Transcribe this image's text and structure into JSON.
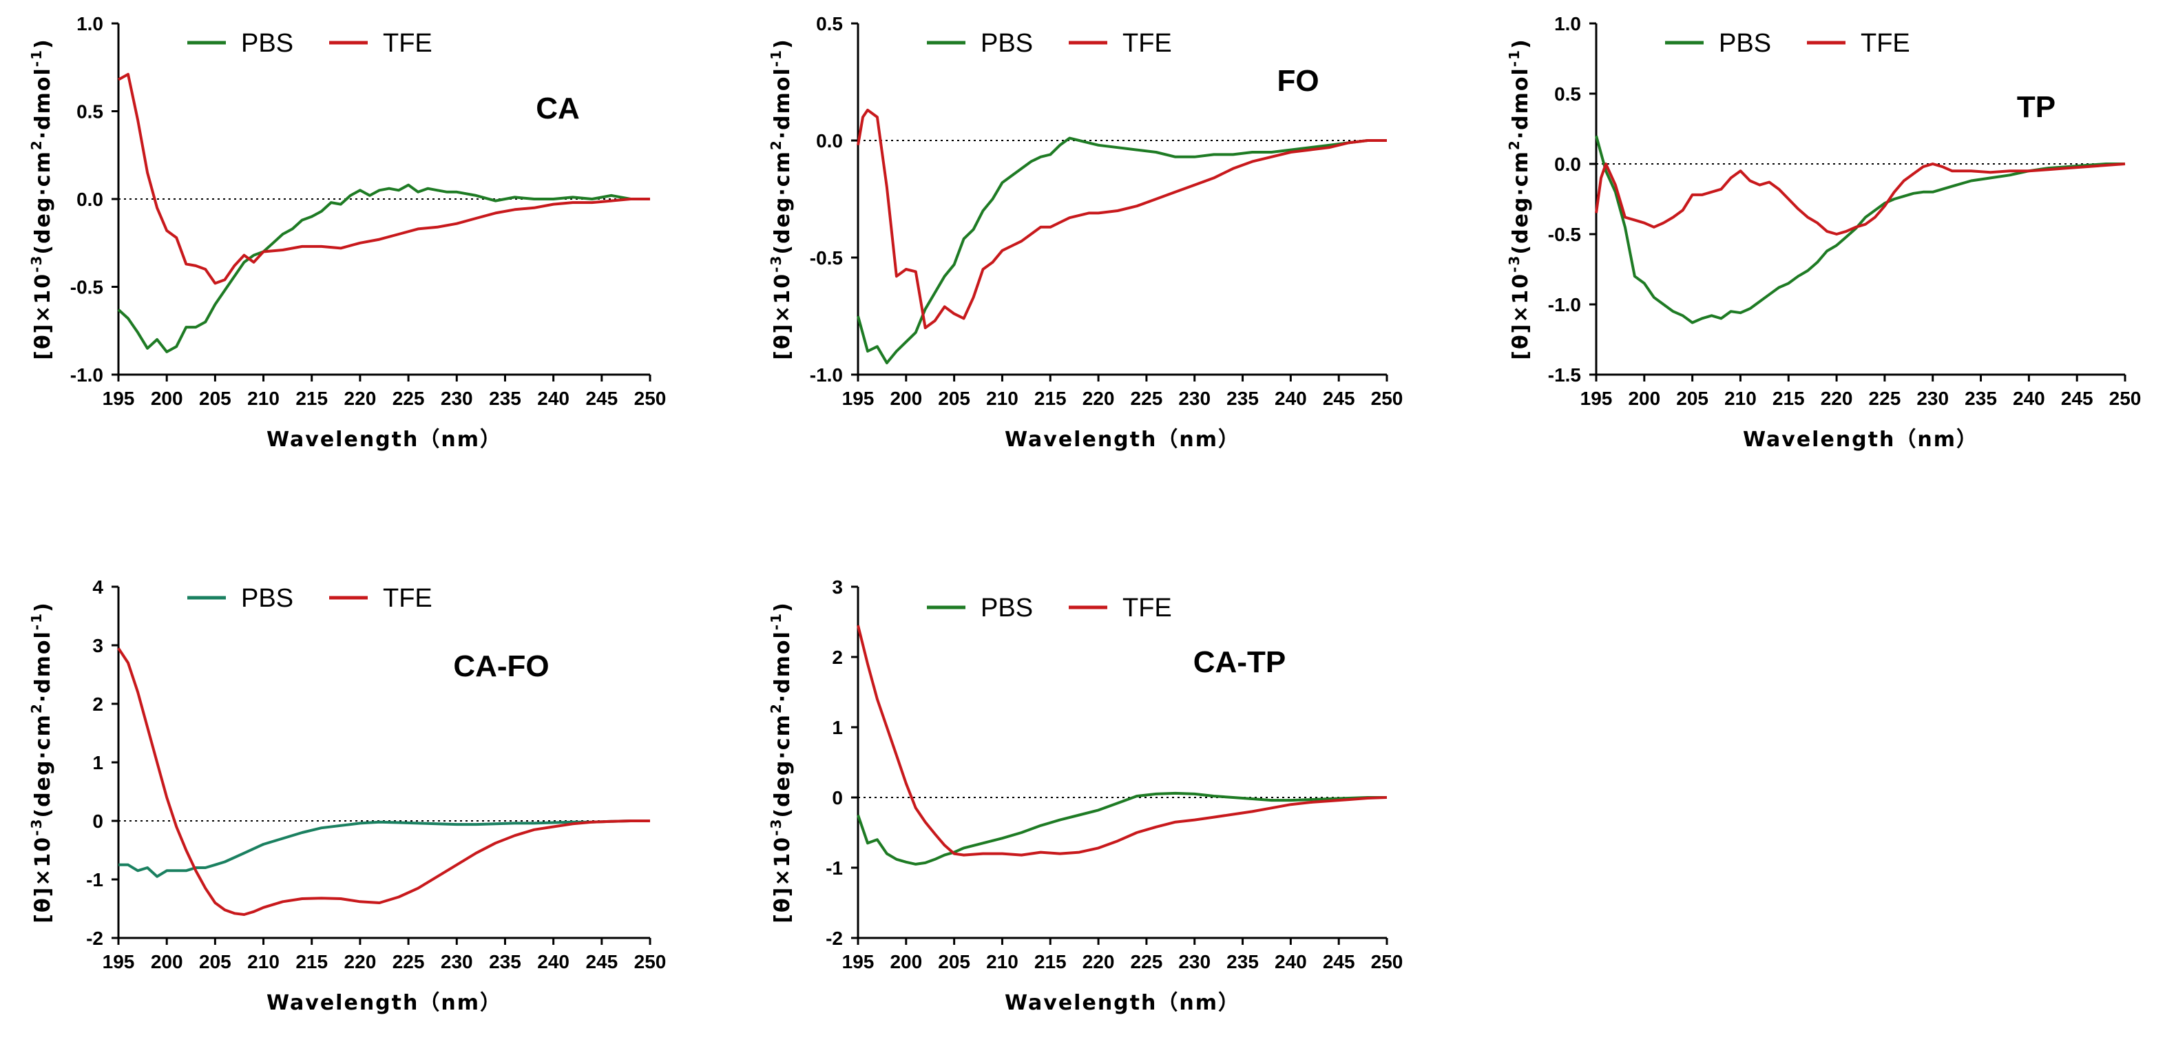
{
  "chart_data": [
    {
      "type": "line",
      "label": "CA",
      "xlabel": "Wavelength（nm）",
      "ylabel_pre": "[θ]×10",
      "ylabel_exp1": "-3",
      "ylabel_mid": "(deg·cm",
      "ylabel_exp2": "2",
      "ylabel_mid2": "·dmol",
      "ylabel_exp3": "-1",
      "ylabel_post": ")",
      "xlim": [
        195,
        250
      ],
      "ylim": [
        -1.0,
        1.0
      ],
      "xticks": [
        195,
        200,
        205,
        210,
        215,
        220,
        225,
        230,
        235,
        240,
        245,
        250
      ],
      "yticks": [
        1.0,
        0.5,
        0.0,
        -0.5,
        -1.0
      ],
      "ytick_labels": [
        "1.0",
        "0.5",
        "0.0",
        "-0.5",
        "-1.0"
      ],
      "series": [
        {
          "name": "PBS",
          "color": "#1e7b24",
          "x": [
            195,
            196,
            197,
            198,
            199,
            200,
            201,
            202,
            203,
            204,
            205,
            206,
            207,
            208,
            209,
            210,
            211,
            212,
            213,
            214,
            215,
            216,
            217,
            218,
            219,
            220,
            221,
            222,
            223,
            224,
            225,
            226,
            227,
            228,
            229,
            230,
            232,
            234,
            236,
            238,
            240,
            242,
            244,
            246,
            248,
            250
          ],
          "y": [
            -0.63,
            -0.68,
            -0.76,
            -0.85,
            -0.8,
            -0.87,
            -0.84,
            -0.73,
            -0.73,
            -0.7,
            -0.6,
            -0.52,
            -0.44,
            -0.36,
            -0.32,
            -0.3,
            -0.25,
            -0.2,
            -0.17,
            -0.12,
            -0.1,
            -0.07,
            -0.02,
            -0.03,
            0.02,
            0.05,
            0.02,
            0.05,
            0.06,
            0.05,
            0.08,
            0.04,
            0.06,
            0.05,
            0.04,
            0.04,
            0.02,
            -0.01,
            0.01,
            0.0,
            0.0,
            0.01,
            0.0,
            0.02,
            0.0,
            0.0
          ]
        },
        {
          "name": "TFE",
          "color": "#c8191c",
          "x": [
            195,
            196,
            197,
            198,
            199,
            200,
            201,
            202,
            203,
            204,
            205,
            206,
            207,
            208,
            209,
            210,
            212,
            214,
            216,
            218,
            220,
            222,
            224,
            226,
            228,
            230,
            232,
            234,
            236,
            238,
            240,
            242,
            244,
            246,
            248,
            250
          ],
          "y": [
            0.68,
            0.71,
            0.45,
            0.15,
            -0.05,
            -0.18,
            -0.22,
            -0.37,
            -0.38,
            -0.4,
            -0.48,
            -0.46,
            -0.38,
            -0.32,
            -0.36,
            -0.3,
            -0.29,
            -0.27,
            -0.27,
            -0.28,
            -0.25,
            -0.23,
            -0.2,
            -0.17,
            -0.16,
            -0.14,
            -0.11,
            -0.08,
            -0.06,
            -0.05,
            -0.03,
            -0.02,
            -0.02,
            -0.01,
            0.0,
            0.0
          ]
        }
      ]
    },
    {
      "type": "line",
      "label": "FO",
      "xlabel": "Wavelength（nm）",
      "ylabel_pre": "[θ]×10",
      "ylabel_exp1": "-3",
      "ylabel_mid": "(deg·cm",
      "ylabel_exp2": "2",
      "ylabel_mid2": "·dmol",
      "ylabel_exp3": "-1",
      "ylabel_post": ")",
      "xlim": [
        195,
        250
      ],
      "ylim": [
        -1.0,
        0.5
      ],
      "xticks": [
        195,
        200,
        205,
        210,
        215,
        220,
        225,
        230,
        235,
        240,
        245,
        250
      ],
      "yticks": [
        0.5,
        0.0,
        -0.5,
        -1.0
      ],
      "ytick_labels": [
        "0.5",
        "0.0",
        "-0.5",
        "-1.0"
      ],
      "series": [
        {
          "name": "PBS",
          "color": "#1e7b24",
          "x": [
            195,
            196,
            197,
            198,
            199,
            200,
            201,
            202,
            203,
            204,
            205,
            206,
            207,
            208,
            209,
            210,
            211,
            212,
            213,
            214,
            215,
            216,
            217,
            218,
            219,
            220,
            222,
            224,
            226,
            228,
            230,
            232,
            234,
            236,
            238,
            240,
            242,
            244,
            246,
            248,
            250
          ],
          "y": [
            -0.75,
            -0.9,
            -0.88,
            -0.95,
            -0.9,
            -0.86,
            -0.82,
            -0.72,
            -0.65,
            -0.58,
            -0.53,
            -0.42,
            -0.38,
            -0.3,
            -0.25,
            -0.18,
            -0.15,
            -0.12,
            -0.09,
            -0.07,
            -0.06,
            -0.02,
            0.01,
            0.0,
            -0.01,
            -0.02,
            -0.03,
            -0.04,
            -0.05,
            -0.07,
            -0.07,
            -0.06,
            -0.06,
            -0.05,
            -0.05,
            -0.04,
            -0.03,
            -0.02,
            -0.01,
            0.0,
            0.0
          ]
        },
        {
          "name": "TFE",
          "color": "#c8191c",
          "x": [
            195,
            195.5,
            196,
            197,
            198,
            199,
            200,
            201,
            202,
            203,
            204,
            205,
            206,
            207,
            208,
            209,
            210,
            211,
            212,
            213,
            214,
            215,
            216,
            217,
            218,
            219,
            220,
            222,
            224,
            226,
            228,
            230,
            232,
            234,
            236,
            238,
            240,
            242,
            244,
            246,
            248,
            250
          ],
          "y": [
            -0.02,
            0.1,
            0.13,
            0.1,
            -0.2,
            -0.58,
            -0.55,
            -0.56,
            -0.8,
            -0.77,
            -0.71,
            -0.74,
            -0.76,
            -0.67,
            -0.55,
            -0.52,
            -0.47,
            -0.45,
            -0.43,
            -0.4,
            -0.37,
            -0.37,
            -0.35,
            -0.33,
            -0.32,
            -0.31,
            -0.31,
            -0.3,
            -0.28,
            -0.25,
            -0.22,
            -0.19,
            -0.16,
            -0.12,
            -0.09,
            -0.07,
            -0.05,
            -0.04,
            -0.03,
            -0.01,
            0.0,
            0.0
          ]
        }
      ]
    },
    {
      "type": "line",
      "label": "TP",
      "xlabel": "Wavelength（nm）",
      "ylabel_pre": "[θ]×10",
      "ylabel_exp1": "-3",
      "ylabel_mid": "(deg·cm",
      "ylabel_exp2": "2",
      "ylabel_mid2": "·dmol",
      "ylabel_exp3": "-1",
      "ylabel_post": ")",
      "xlim": [
        195,
        250
      ],
      "ylim": [
        -1.5,
        1.0
      ],
      "xticks": [
        195,
        200,
        205,
        210,
        215,
        220,
        225,
        230,
        235,
        240,
        245,
        250
      ],
      "yticks": [
        1.0,
        0.5,
        0.0,
        -0.5,
        -1.0,
        -1.5
      ],
      "ytick_labels": [
        "1.0",
        "0.5",
        "0.0",
        "-0.5",
        "-1.0",
        "-1.5"
      ],
      "series": [
        {
          "name": "PBS",
          "color": "#1e7b24",
          "x": [
            195,
            196,
            197,
            198,
            199,
            200,
            201,
            202,
            203,
            204,
            205,
            206,
            207,
            208,
            209,
            210,
            211,
            212,
            213,
            214,
            215,
            216,
            217,
            218,
            219,
            220,
            221,
            222,
            223,
            224,
            225,
            226,
            227,
            228,
            229,
            230,
            232,
            234,
            236,
            238,
            240,
            242,
            244,
            246,
            248,
            250
          ],
          "y": [
            0.2,
            -0.05,
            -0.2,
            -0.45,
            -0.8,
            -0.85,
            -0.95,
            -1.0,
            -1.05,
            -1.08,
            -1.13,
            -1.1,
            -1.08,
            -1.1,
            -1.05,
            -1.06,
            -1.03,
            -0.98,
            -0.93,
            -0.88,
            -0.85,
            -0.8,
            -0.76,
            -0.7,
            -0.62,
            -0.58,
            -0.52,
            -0.46,
            -0.38,
            -0.33,
            -0.28,
            -0.25,
            -0.23,
            -0.21,
            -0.2,
            -0.2,
            -0.16,
            -0.12,
            -0.1,
            -0.08,
            -0.05,
            -0.03,
            -0.02,
            -0.01,
            0.0,
            0.0
          ]
        },
        {
          "name": "TFE",
          "color": "#c8191c",
          "x": [
            195,
            195.5,
            196,
            197,
            198,
            199,
            200,
            201,
            202,
            203,
            204,
            205,
            206,
            207,
            208,
            209,
            210,
            211,
            212,
            213,
            214,
            215,
            216,
            217,
            218,
            219,
            220,
            221,
            222,
            223,
            224,
            225,
            226,
            227,
            228,
            229,
            230,
            231,
            232,
            234,
            236,
            238,
            240,
            242,
            244,
            246,
            248,
            250
          ],
          "y": [
            -0.35,
            -0.1,
            0.0,
            -0.15,
            -0.38,
            -0.4,
            -0.42,
            -0.45,
            -0.42,
            -0.38,
            -0.33,
            -0.22,
            -0.22,
            -0.2,
            -0.18,
            -0.1,
            -0.05,
            -0.12,
            -0.15,
            -0.13,
            -0.18,
            -0.25,
            -0.32,
            -0.38,
            -0.42,
            -0.48,
            -0.5,
            -0.48,
            -0.45,
            -0.43,
            -0.38,
            -0.3,
            -0.2,
            -0.12,
            -0.07,
            -0.02,
            0.0,
            -0.02,
            -0.05,
            -0.05,
            -0.06,
            -0.05,
            -0.05,
            -0.04,
            -0.03,
            -0.02,
            -0.01,
            0.0
          ]
        }
      ]
    },
    {
      "type": "line",
      "label": "CA-FO",
      "xlabel": "Wavelength（nm）",
      "ylabel_pre": "[θ]×10",
      "ylabel_exp1": "-3",
      "ylabel_mid": "(deg·cm",
      "ylabel_exp2": "2",
      "ylabel_mid2": "·dmol",
      "ylabel_exp3": "-1",
      "ylabel_post": ")",
      "xlim": [
        195,
        250
      ],
      "ylim": [
        -2,
        4
      ],
      "xticks": [
        195,
        200,
        205,
        210,
        215,
        220,
        225,
        230,
        235,
        240,
        245,
        250
      ],
      "yticks": [
        4,
        3,
        2,
        1,
        0,
        -1,
        -2
      ],
      "ytick_labels": [
        "4",
        "3",
        "2",
        "1",
        "0",
        "-1",
        "-2"
      ],
      "series": [
        {
          "name": "PBS",
          "color": "#1a8060",
          "x": [
            195,
            196,
            197,
            198,
            199,
            200,
            201,
            202,
            203,
            204,
            205,
            206,
            208,
            210,
            212,
            214,
            216,
            218,
            220,
            222,
            224,
            226,
            228,
            230,
            232,
            234,
            236,
            238,
            240,
            242,
            244,
            246,
            248,
            250
          ],
          "y": [
            -0.75,
            -0.75,
            -0.85,
            -0.8,
            -0.95,
            -0.85,
            -0.85,
            -0.85,
            -0.8,
            -0.8,
            -0.75,
            -0.7,
            -0.55,
            -0.4,
            -0.3,
            -0.2,
            -0.12,
            -0.08,
            -0.04,
            -0.02,
            -0.03,
            -0.04,
            -0.05,
            -0.06,
            -0.06,
            -0.05,
            -0.04,
            -0.04,
            -0.03,
            -0.02,
            -0.02,
            -0.01,
            0.0,
            0.0
          ]
        },
        {
          "name": "TFE",
          "color": "#c8191c",
          "x": [
            195,
            196,
            197,
            198,
            199,
            200,
            201,
            202,
            203,
            204,
            205,
            206,
            207,
            208,
            209,
            210,
            212,
            214,
            216,
            218,
            220,
            222,
            224,
            226,
            228,
            230,
            232,
            234,
            236,
            238,
            240,
            242,
            244,
            246,
            248,
            250
          ],
          "y": [
            2.95,
            2.7,
            2.2,
            1.6,
            1.0,
            0.4,
            -0.1,
            -0.5,
            -0.85,
            -1.15,
            -1.4,
            -1.52,
            -1.58,
            -1.6,
            -1.55,
            -1.48,
            -1.38,
            -1.33,
            -1.32,
            -1.33,
            -1.38,
            -1.4,
            -1.3,
            -1.15,
            -0.95,
            -0.75,
            -0.55,
            -0.38,
            -0.25,
            -0.15,
            -0.1,
            -0.05,
            -0.02,
            -0.01,
            0.0,
            0.0
          ]
        }
      ]
    },
    {
      "type": "line",
      "label": "CA-TP",
      "xlabel": "Wavelength（nm）",
      "ylabel_pre": "[θ]×10",
      "ylabel_exp1": "-3",
      "ylabel_mid": "(deg·cm",
      "ylabel_exp2": "2",
      "ylabel_mid2": "·dmol",
      "ylabel_exp3": "-1",
      "ylabel_post": ")",
      "xlim": [
        195,
        250
      ],
      "ylim": [
        -2,
        3
      ],
      "xticks": [
        195,
        200,
        205,
        210,
        215,
        220,
        225,
        230,
        235,
        240,
        245,
        250
      ],
      "yticks": [
        3,
        2,
        1,
        0,
        -1,
        -2
      ],
      "ytick_labels": [
        "3",
        "2",
        "1",
        "0",
        "-1",
        "-2"
      ],
      "series": [
        {
          "name": "PBS",
          "color": "#1e7b24",
          "x": [
            195,
            196,
            197,
            198,
            199,
            200,
            201,
            202,
            203,
            204,
            205,
            206,
            208,
            210,
            212,
            214,
            216,
            218,
            220,
            222,
            224,
            226,
            228,
            230,
            232,
            234,
            236,
            238,
            240,
            242,
            244,
            246,
            248,
            250
          ],
          "y": [
            -0.25,
            -0.65,
            -0.6,
            -0.8,
            -0.88,
            -0.92,
            -0.95,
            -0.93,
            -0.88,
            -0.82,
            -0.78,
            -0.72,
            -0.65,
            -0.58,
            -0.5,
            -0.4,
            -0.32,
            -0.25,
            -0.18,
            -0.08,
            0.02,
            0.05,
            0.06,
            0.05,
            0.02,
            0.0,
            -0.02,
            -0.04,
            -0.04,
            -0.03,
            -0.02,
            -0.01,
            0.0,
            0.0
          ]
        },
        {
          "name": "TFE",
          "color": "#c8191c",
          "x": [
            195,
            196,
            197,
            198,
            199,
            200,
            201,
            202,
            203,
            204,
            205,
            206,
            208,
            210,
            212,
            214,
            216,
            218,
            220,
            222,
            224,
            226,
            228,
            230,
            232,
            234,
            236,
            238,
            240,
            242,
            244,
            246,
            248,
            250
          ],
          "y": [
            2.45,
            1.9,
            1.4,
            1.0,
            0.6,
            0.2,
            -0.15,
            -0.35,
            -0.52,
            -0.68,
            -0.8,
            -0.82,
            -0.8,
            -0.8,
            -0.82,
            -0.78,
            -0.8,
            -0.78,
            -0.72,
            -0.62,
            -0.5,
            -0.42,
            -0.35,
            -0.32,
            -0.28,
            -0.24,
            -0.2,
            -0.15,
            -0.1,
            -0.07,
            -0.05,
            -0.03,
            -0.01,
            0.0
          ]
        }
      ]
    }
  ]
}
